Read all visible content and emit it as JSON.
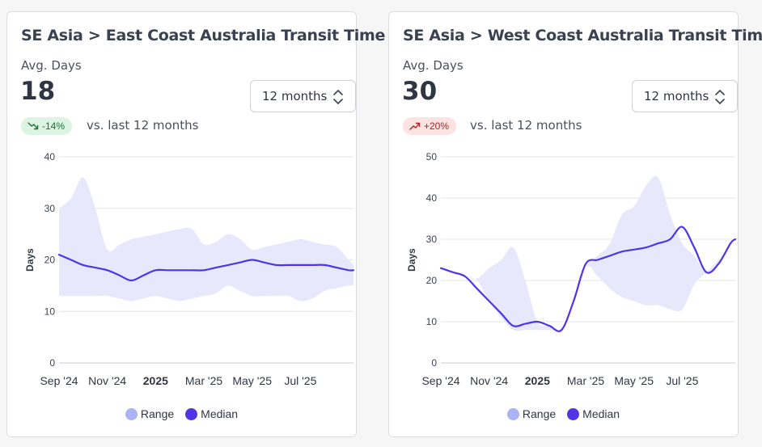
{
  "colors": {
    "range_fill": "#e7e8fc",
    "range_legend": "#a9b3f5",
    "median_line": "#4f35e6",
    "grid": "#e3e4e7",
    "badge_down_bg": "#dcf5e3",
    "badge_down_text": "#1f6d37",
    "badge_up_bg": "#fde2e2",
    "badge_up_text": "#a42727"
  },
  "cards": [
    {
      "title": "SE Asia > East Coast Australia Transit Time",
      "avg_label": "Avg. Days",
      "avg_value": "18",
      "period_select": "12 months",
      "badge": {
        "icon": "trend-down-icon",
        "text": "-14%"
      },
      "comparison": "vs. last 12 months",
      "legend": {
        "range": "Range",
        "median": "Median"
      }
    },
    {
      "title": "SE Asia > West Coast Australia Transit Times",
      "avg_label": "Avg. Days",
      "avg_value": "30",
      "period_select": "12 months",
      "badge": {
        "icon": "trend-up-icon",
        "text": "+20%"
      },
      "comparison": "vs. last 12 months",
      "legend": {
        "range": "Range",
        "median": "Median"
      }
    }
  ],
  "chart_data": [
    {
      "type": "area",
      "title": "SE Asia > East Coast Australia Transit Time",
      "xlabel": "",
      "ylabel": "Days",
      "ylim": [
        0,
        40
      ],
      "yticks": [
        0,
        10,
        20,
        30,
        40
      ],
      "xlim": [
        0,
        12.2
      ],
      "xticks": [
        {
          "x": 0,
          "label": "Sep '24",
          "bold": false
        },
        {
          "x": 2,
          "label": "Nov '24",
          "bold": false
        },
        {
          "x": 4,
          "label": "2025",
          "bold": true
        },
        {
          "x": 6,
          "label": "Mar '25",
          "bold": false
        },
        {
          "x": 8,
          "label": "May '25",
          "bold": false
        },
        {
          "x": 10,
          "label": "Jul '25",
          "bold": false
        }
      ],
      "grid": true,
      "legend_position": "bottom",
      "x": [
        0,
        0.5,
        1,
        1.5,
        2,
        2.5,
        3,
        3.5,
        4,
        4.5,
        5,
        5.5,
        6,
        6.5,
        7,
        7.5,
        8,
        8.5,
        9,
        9.5,
        10,
        10.5,
        11,
        11.5,
        12,
        12.2
      ],
      "series": [
        {
          "name": "Range upper",
          "values": [
            30,
            32,
            36,
            30,
            22,
            23,
            24,
            24.5,
            25,
            25.5,
            26,
            26,
            23,
            23.5,
            25,
            24,
            22,
            22.5,
            23,
            23.5,
            24,
            23.5,
            23,
            22.5,
            20,
            19
          ]
        },
        {
          "name": "Range lower",
          "values": [
            13,
            13,
            13,
            13,
            13,
            12.5,
            12,
            12.5,
            13,
            12.5,
            12,
            12.5,
            13,
            13.5,
            15,
            14,
            13,
            13,
            13,
            13,
            12,
            12.5,
            14,
            14.5,
            15,
            15
          ]
        },
        {
          "name": "Median",
          "values": [
            21,
            20,
            19,
            18.5,
            18,
            17,
            16,
            17,
            18,
            18,
            18,
            18,
            18,
            18.5,
            19,
            19.5,
            20,
            19.5,
            19,
            19,
            19,
            19,
            19,
            18.5,
            18,
            18
          ]
        }
      ]
    },
    {
      "type": "area",
      "title": "SE Asia > West Coast Australia Transit Times",
      "xlabel": "",
      "ylabel": "Days",
      "ylim": [
        0,
        50
      ],
      "yticks": [
        0,
        10,
        20,
        30,
        40,
        50
      ],
      "xlim": [
        0,
        12.2
      ],
      "xticks": [
        {
          "x": 0,
          "label": "Sep '24",
          "bold": false
        },
        {
          "x": 2,
          "label": "Nov '24",
          "bold": false
        },
        {
          "x": 4,
          "label": "2025",
          "bold": true
        },
        {
          "x": 6,
          "label": "Mar '25",
          "bold": false
        },
        {
          "x": 8,
          "label": "May '25",
          "bold": false
        },
        {
          "x": 10,
          "label": "Jul '25",
          "bold": false
        }
      ],
      "grid": true,
      "legend_position": "bottom",
      "x": [
        0,
        0.5,
        1,
        1.5,
        2,
        2.5,
        3,
        3.5,
        4,
        4.5,
        5,
        5.5,
        6,
        6.5,
        7,
        7.5,
        8,
        8.5,
        9,
        9.5,
        10,
        10.5,
        11,
        11.5,
        12,
        12.2
      ],
      "series": [
        {
          "name": "Range upper",
          "values": [
            23,
            22,
            21,
            20.5,
            23,
            25,
            28,
            20,
            10,
            9,
            8,
            12,
            23,
            26,
            29,
            36,
            38,
            43,
            45,
            36,
            29,
            26,
            22,
            24,
            29,
            30
          ]
        },
        {
          "name": "Range lower",
          "values": [
            23,
            22,
            21,
            20,
            15,
            11,
            8,
            8,
            8,
            8,
            8,
            12,
            23,
            21,
            18,
            16,
            15,
            14,
            14,
            13,
            13,
            19,
            22,
            25,
            29,
            30
          ]
        },
        {
          "name": "Median",
          "values": [
            23,
            22,
            21,
            18,
            15,
            12,
            9,
            9.5,
            10,
            9,
            8,
            15,
            24,
            25,
            26,
            27,
            27.5,
            28,
            29,
            30,
            33,
            28,
            22,
            24,
            29,
            30
          ]
        }
      ]
    }
  ]
}
